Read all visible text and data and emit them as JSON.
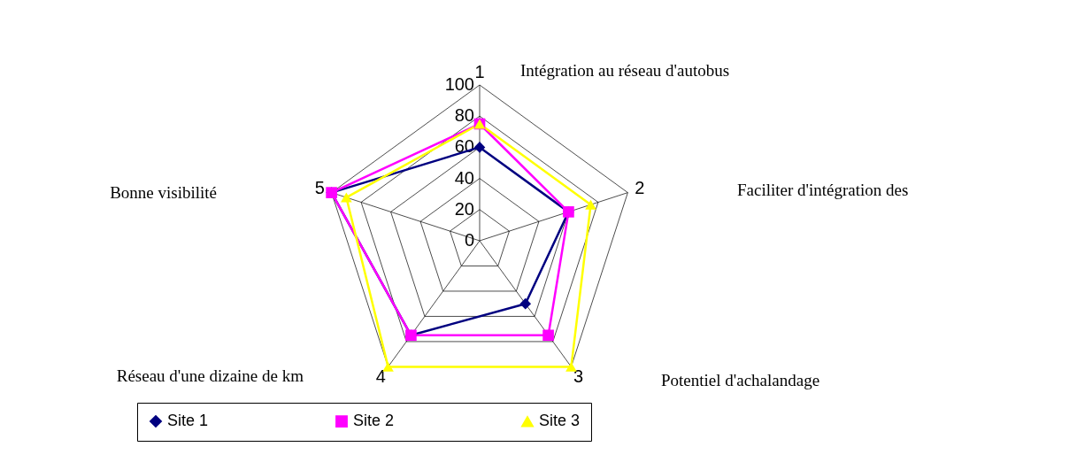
{
  "chart_data": {
    "type": "radar",
    "categories": [
      "1",
      "2",
      "3",
      "4",
      "5"
    ],
    "series": [
      {
        "name": "Site 1",
        "color": "#000080",
        "marker": "diamond",
        "values": [
          60,
          60,
          50,
          75,
          100
        ]
      },
      {
        "name": "Site 2",
        "color": "#ff00ff",
        "marker": "square",
        "values": [
          75,
          60,
          75,
          75,
          100
        ]
      },
      {
        "name": "Site 3",
        "color": "#ffff00",
        "marker": "triangle",
        "values": [
          75,
          75,
          100,
          100,
          90
        ]
      }
    ],
    "ylim": [
      0,
      100
    ],
    "yticks": [
      0,
      20,
      40,
      60,
      80,
      100
    ],
    "grid": true,
    "legend": "bottom",
    "annotations": [
      "Intégration au réseau d'autobus",
      "Faciliter d'intégration des",
      "Potentiel d'achalandage",
      "Réseau d'une dizaine de km",
      "Bonne visibilité"
    ]
  }
}
